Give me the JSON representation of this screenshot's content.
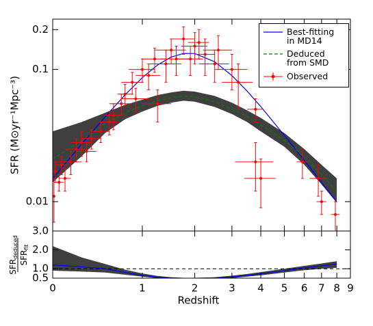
{
  "chart_data": [
    {
      "type": "line",
      "ylabel": "SFR (M⊙yr⁻¹Mpc⁻³)",
      "xscale": "log1p",
      "yscale": "log",
      "xlim": [
        0,
        9
      ],
      "ylim": [
        0.006,
        0.24
      ],
      "yticks": [
        0.01,
        0.1,
        0.2
      ],
      "legend": "upper right",
      "x": [
        0,
        0.25,
        0.5,
        0.75,
        1,
        1.25,
        1.5,
        1.75,
        2,
        2.5,
        3,
        3.5,
        4,
        5,
        6,
        7,
        8
      ],
      "series": [
        {
          "name": "Best-fitting\nin MD14",
          "color": "#0000ff",
          "values": [
            0.01496,
            0.02716,
            0.04374,
            0.06417,
            0.08666,
            0.1079,
            0.124,
            0.1321,
            0.1319,
            0.1142,
            0.0898,
            0.0685,
            0.0523,
            0.0317,
            0.0205,
            0.01398,
            0.00994
          ]
        },
        {
          "name": "Deduced\nfrom SMD",
          "color": "#008000",
          "band_color": "#404040",
          "values": [
            0.021,
            0.029,
            0.039,
            0.047,
            0.053,
            0.058,
            0.061,
            0.063,
            0.062,
            0.057,
            0.05,
            0.044,
            0.038,
            0.029,
            0.022,
            0.016,
            0.012
          ],
          "band_low": [
            0.014,
            0.022,
            0.033,
            0.042,
            0.048,
            0.053,
            0.056,
            0.058,
            0.057,
            0.052,
            0.046,
            0.04,
            0.034,
            0.026,
            0.019,
            0.0135,
            0.0098
          ],
          "band_high": [
            0.034,
            0.04,
            0.047,
            0.054,
            0.059,
            0.064,
            0.067,
            0.069,
            0.068,
            0.063,
            0.056,
            0.049,
            0.043,
            0.033,
            0.025,
            0.019,
            0.015
          ]
        }
      ],
      "errorbars": {
        "name": "Observed",
        "color": "#ff0000",
        "x": [
          0.01,
          0.02,
          0.05,
          0.07,
          0.1,
          0.15,
          0.2,
          0.25,
          0.3,
          0.35,
          0.45,
          0.55,
          0.6,
          0.7,
          0.75,
          0.85,
          0.9,
          1.0,
          1.1,
          1.2,
          1.25,
          1.4,
          1.5,
          1.6,
          1.75,
          1.9,
          2.0,
          2.1,
          2.25,
          2.5,
          2.6,
          3.0,
          3.2,
          3.8,
          3.8,
          4.0,
          5.9,
          6.8,
          7.0,
          7.9
        ],
        "values": [
          0.011,
          0.017,
          0.014,
          0.019,
          0.015,
          0.02,
          0.025,
          0.028,
          0.024,
          0.03,
          0.034,
          0.04,
          0.045,
          0.055,
          0.065,
          0.08,
          0.06,
          0.1,
          0.09,
          0.12,
          0.055,
          0.11,
          0.14,
          0.12,
          0.17,
          0.12,
          0.15,
          0.16,
          0.13,
          0.11,
          0.14,
          0.1,
          0.08,
          0.05,
          0.02,
          0.015,
          0.02,
          0.015,
          0.01,
          0.008
        ],
        "xerr": [
          0,
          0.02,
          0.04,
          0.05,
          0.05,
          0.1,
          0.1,
          0.1,
          0.1,
          0.1,
          0.1,
          0.1,
          0.1,
          0.15,
          0.1,
          0.15,
          0.2,
          0.2,
          0.2,
          0.2,
          0.25,
          0.3,
          0.3,
          0.3,
          0.25,
          0.3,
          0.3,
          0.25,
          0.25,
          0.4,
          0.4,
          0.5,
          0.5,
          0.3,
          0.7,
          0.6,
          0.3,
          0.5,
          0.3,
          0.3
        ],
        "yerr": [
          0.004,
          0.003,
          0.002,
          0.003,
          0.003,
          0.004,
          0.005,
          0.006,
          0.004,
          0.005,
          0.006,
          0.008,
          0.01,
          0.01,
          0.012,
          0.015,
          0.012,
          0.02,
          0.02,
          0.025,
          0.015,
          0.03,
          0.03,
          0.03,
          0.04,
          0.03,
          0.04,
          0.04,
          0.04,
          0.03,
          0.04,
          0.03,
          0.03,
          0.01,
          0.008,
          0.006,
          0.005,
          0.004,
          0.002,
          0.002
        ]
      }
    },
    {
      "type": "line",
      "xlabel": "Redshift",
      "xscale": "log1p",
      "ylabel_numerator": [
        "SFR",
        "deduced"
      ],
      "ylabel_denominator": [
        "SFR",
        "fit"
      ],
      "xlim": [
        0,
        9
      ],
      "xticks": [
        0,
        1,
        2,
        3,
        4,
        5,
        6,
        7,
        8,
        9
      ],
      "ylim": [
        0.5,
        3.0
      ],
      "yticks": [
        0.5,
        {
          "value": 1.0,
          "label": "1.0"
        },
        {
          "value": 2.0,
          "label": "2.0"
        },
        {
          "value": 3.0,
          "label": "3.0"
        }
      ],
      "hline": 1,
      "x": [
        0,
        0.25,
        0.5,
        0.75,
        1,
        1.25,
        1.5,
        1.75,
        2,
        2.5,
        3,
        3.5,
        4,
        5,
        6,
        7,
        8
      ],
      "series": [
        {
          "color": "#0000ff",
          "values": [
            1.2,
            1.1,
            1.0,
            0.8,
            0.65,
            0.55,
            0.5,
            0.47,
            0.47,
            0.5,
            0.57,
            0.65,
            0.73,
            0.9,
            1.05,
            1.15,
            1.25
          ]
        }
      ],
      "band_color": "#404040",
      "band_low": [
        0.9,
        0.85,
        0.8,
        0.68,
        0.58,
        0.5,
        0.45,
        0.43,
        0.43,
        0.45,
        0.5,
        0.58,
        0.65,
        0.8,
        0.92,
        1.0,
        1.05
      ],
      "band_high": [
        2.2,
        1.6,
        1.25,
        0.95,
        0.75,
        0.62,
        0.55,
        0.52,
        0.52,
        0.55,
        0.63,
        0.72,
        0.82,
        1.0,
        1.15,
        1.28,
        1.4
      ]
    }
  ]
}
